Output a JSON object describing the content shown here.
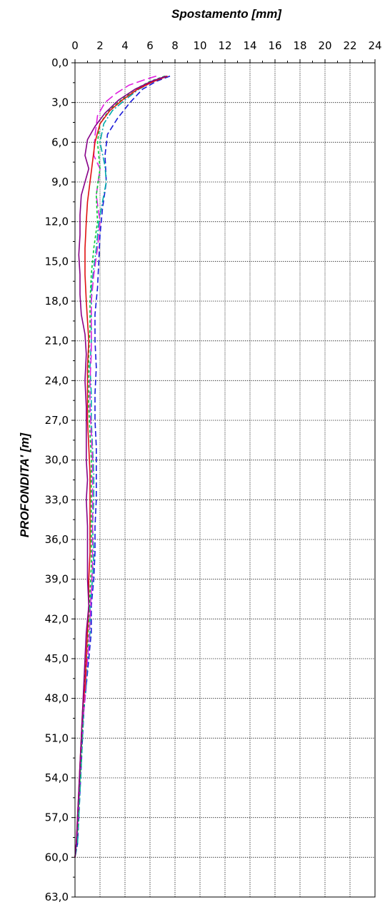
{
  "chart_data": {
    "type": "line",
    "title": "Spostamento [mm]",
    "xlabel": "Spostamento [mm]",
    "ylabel": "PROFONDITA' [m]",
    "xlim": [
      0,
      24
    ],
    "ylim": [
      0,
      63
    ],
    "y_inverted": true,
    "x_axis_position": "top",
    "x_ticks": [
      0,
      2,
      4,
      6,
      8,
      10,
      12,
      14,
      16,
      18,
      20,
      22,
      24
    ],
    "x_tick_labels": [
      "0",
      "2",
      "4",
      "6",
      "8",
      "10",
      "12",
      "14",
      "16",
      "18",
      "20",
      "22",
      "24"
    ],
    "y_ticks": [
      0,
      3,
      6,
      9,
      12,
      15,
      18,
      21,
      24,
      27,
      30,
      33,
      36,
      39,
      42,
      45,
      48,
      51,
      54,
      57,
      60,
      63
    ],
    "y_tick_labels": [
      "0,0",
      "3,0",
      "6,0",
      "9,0",
      "12,0",
      "15,0",
      "18,0",
      "21,0",
      "24,0",
      "27,0",
      "30,0",
      "33,0",
      "36,0",
      "39,0",
      "42,0",
      "45,0",
      "48,0",
      "51,0",
      "54,0",
      "57,0",
      "60,0",
      "63,0"
    ],
    "grid": true,
    "legend": "none",
    "series": [
      {
        "color": "#1a1ad8",
        "dash": "8,4",
        "points": [
          [
            7.6,
            1
          ],
          [
            6.5,
            1.4
          ],
          [
            5.4,
            2
          ],
          [
            4.4,
            3
          ],
          [
            3.4,
            4.2
          ],
          [
            2.6,
            5.4
          ],
          [
            2.4,
            7
          ],
          [
            2.5,
            9
          ],
          [
            2.2,
            11
          ],
          [
            2.0,
            13
          ],
          [
            1.9,
            15
          ],
          [
            1.8,
            17
          ],
          [
            1.6,
            19
          ],
          [
            1.6,
            21
          ],
          [
            1.7,
            23
          ],
          [
            1.6,
            25
          ],
          [
            1.6,
            27
          ],
          [
            1.7,
            29
          ],
          [
            1.7,
            31
          ],
          [
            1.7,
            33
          ],
          [
            1.6,
            35
          ],
          [
            1.6,
            37
          ],
          [
            1.5,
            39
          ],
          [
            1.3,
            41
          ],
          [
            1.3,
            43
          ],
          [
            1.1,
            45
          ],
          [
            0.9,
            47
          ],
          [
            0.7,
            49
          ],
          [
            0.6,
            51
          ],
          [
            0.5,
            53
          ],
          [
            0.4,
            55
          ],
          [
            0.3,
            57
          ],
          [
            0.2,
            59
          ],
          [
            0,
            60
          ]
        ]
      },
      {
        "color": "#00aaaa",
        "dash": "10,3,2,3",
        "points": [
          [
            7.4,
            1
          ],
          [
            6.3,
            1.4
          ],
          [
            5.1,
            2
          ],
          [
            4.0,
            2.8
          ],
          [
            3.0,
            3.6
          ],
          [
            2.3,
            4.6
          ],
          [
            2.0,
            6
          ],
          [
            2.4,
            7.8
          ],
          [
            2.5,
            9
          ],
          [
            2.2,
            10.5
          ],
          [
            1.9,
            12
          ],
          [
            1.7,
            14
          ],
          [
            1.5,
            15.5
          ],
          [
            1.3,
            17
          ],
          [
            1.3,
            19
          ],
          [
            1.3,
            21
          ],
          [
            1.2,
            23
          ],
          [
            1.3,
            25
          ],
          [
            1.3,
            27
          ],
          [
            1.4,
            29
          ],
          [
            1.5,
            31
          ],
          [
            1.5,
            33
          ],
          [
            1.4,
            35
          ],
          [
            1.5,
            37
          ],
          [
            1.4,
            39
          ],
          [
            1.2,
            41
          ],
          [
            1.2,
            43
          ],
          [
            1.0,
            45
          ],
          [
            0.9,
            47
          ],
          [
            0.7,
            49
          ],
          [
            0.6,
            51
          ],
          [
            0.5,
            53
          ],
          [
            0.4,
            55
          ],
          [
            0.3,
            57
          ],
          [
            0.2,
            59
          ],
          [
            0,
            60
          ]
        ]
      },
      {
        "color": "#e020e0",
        "dash": "12,5",
        "points": [
          [
            6.5,
            1
          ],
          [
            5.5,
            1.3
          ],
          [
            4.3,
            1.7
          ],
          [
            3.3,
            2.3
          ],
          [
            2.4,
            3.0
          ],
          [
            1.8,
            4.0
          ],
          [
            1.6,
            5.5
          ],
          [
            1.5,
            7.0
          ],
          [
            2.0,
            8.0
          ],
          [
            1.7,
            10
          ],
          [
            2.0,
            12
          ],
          [
            1.8,
            14
          ],
          [
            1.5,
            16
          ],
          [
            1.3,
            18
          ],
          [
            1.3,
            20
          ],
          [
            1.3,
            22
          ],
          [
            1.2,
            24
          ],
          [
            1.2,
            26
          ],
          [
            1.3,
            28
          ],
          [
            1.4,
            30
          ],
          [
            1.4,
            32
          ],
          [
            1.4,
            34
          ],
          [
            1.4,
            36
          ],
          [
            1.4,
            38
          ],
          [
            1.3,
            40
          ],
          [
            1.2,
            42
          ],
          [
            1.1,
            44
          ],
          [
            0.9,
            46
          ],
          [
            0.8,
            48
          ],
          [
            0.6,
            50
          ],
          [
            0.5,
            52
          ],
          [
            0.4,
            54
          ],
          [
            0.3,
            56
          ],
          [
            0.2,
            58
          ],
          [
            0,
            60
          ]
        ]
      },
      {
        "color": "#00cc33",
        "dash": "4,3",
        "points": [
          [
            7.2,
            1
          ],
          [
            6.0,
            1.4
          ],
          [
            4.8,
            2
          ],
          [
            3.7,
            2.8
          ],
          [
            2.7,
            3.6
          ],
          [
            2.0,
            4.6
          ],
          [
            1.8,
            6
          ],
          [
            2.0,
            8
          ],
          [
            1.7,
            10
          ],
          [
            1.8,
            12
          ],
          [
            1.5,
            14
          ],
          [
            1.3,
            16
          ],
          [
            1.2,
            18
          ],
          [
            1.2,
            20
          ],
          [
            1.1,
            22
          ],
          [
            1.1,
            24
          ],
          [
            1.1,
            26
          ],
          [
            1.2,
            28
          ],
          [
            1.3,
            30
          ],
          [
            1.3,
            32
          ],
          [
            1.3,
            34
          ],
          [
            1.3,
            36
          ],
          [
            1.3,
            38
          ],
          [
            1.2,
            40
          ],
          [
            1.1,
            42
          ],
          [
            1.0,
            44
          ],
          [
            0.8,
            46
          ],
          [
            0.7,
            48
          ],
          [
            0.6,
            50
          ],
          [
            0.5,
            52
          ],
          [
            0.4,
            54
          ],
          [
            0.3,
            56
          ],
          [
            0.2,
            58
          ],
          [
            0,
            60
          ]
        ]
      },
      {
        "color": "#e01010",
        "dash": "",
        "points": [
          [
            7.4,
            1
          ],
          [
            6.3,
            1.4
          ],
          [
            5.0,
            2
          ],
          [
            3.8,
            2.8
          ],
          [
            2.8,
            3.6
          ],
          [
            2.0,
            4.6
          ],
          [
            1.6,
            6
          ],
          [
            1.4,
            7.5
          ],
          [
            1.2,
            9
          ],
          [
            1.0,
            10.5
          ],
          [
            0.9,
            12
          ],
          [
            0.8,
            14
          ],
          [
            0.8,
            16
          ],
          [
            0.9,
            18
          ],
          [
            1.0,
            19.5
          ],
          [
            1.1,
            21
          ],
          [
            1.0,
            23
          ],
          [
            1.0,
            25
          ],
          [
            1.0,
            27
          ],
          [
            1.1,
            29
          ],
          [
            1.2,
            31
          ],
          [
            1.2,
            33
          ],
          [
            1.2,
            35
          ],
          [
            1.2,
            37
          ],
          [
            1.1,
            39
          ],
          [
            1.1,
            41
          ],
          [
            1.0,
            43
          ],
          [
            0.9,
            45
          ],
          [
            0.8,
            47
          ],
          [
            0.6,
            49
          ],
          [
            0.5,
            51
          ],
          [
            0.4,
            53
          ],
          [
            0.3,
            55
          ],
          [
            0.2,
            57
          ],
          [
            0.1,
            59
          ],
          [
            0,
            60
          ]
        ]
      },
      {
        "color": "#880088",
        "dash": "",
        "points": [
          [
            7.3,
            1
          ],
          [
            6.1,
            1.4
          ],
          [
            4.8,
            2
          ],
          [
            3.5,
            2.8
          ],
          [
            2.4,
            3.8
          ],
          [
            1.6,
            4.8
          ],
          [
            1.0,
            5.8
          ],
          [
            0.8,
            7
          ],
          [
            1.1,
            8
          ],
          [
            0.8,
            9
          ],
          [
            0.5,
            10
          ],
          [
            0.4,
            11.5
          ],
          [
            0.4,
            13
          ],
          [
            0.3,
            14.5
          ],
          [
            0.4,
            16
          ],
          [
            0.4,
            17.5
          ],
          [
            0.5,
            19
          ],
          [
            0.8,
            20.5
          ],
          [
            0.9,
            22
          ],
          [
            0.8,
            24
          ],
          [
            0.9,
            26
          ],
          [
            0.9,
            28
          ],
          [
            0.9,
            30
          ],
          [
            1.0,
            31.5
          ],
          [
            0.9,
            33
          ],
          [
            1.0,
            35
          ],
          [
            1.0,
            37
          ],
          [
            1.0,
            39
          ],
          [
            1.1,
            41
          ],
          [
            0.9,
            43
          ],
          [
            0.8,
            45
          ],
          [
            0.7,
            47
          ],
          [
            0.6,
            49
          ],
          [
            0.5,
            51
          ],
          [
            0.4,
            53
          ],
          [
            0.3,
            55
          ],
          [
            0.2,
            57
          ],
          [
            0.1,
            59
          ],
          [
            0,
            60
          ]
        ]
      }
    ]
  }
}
